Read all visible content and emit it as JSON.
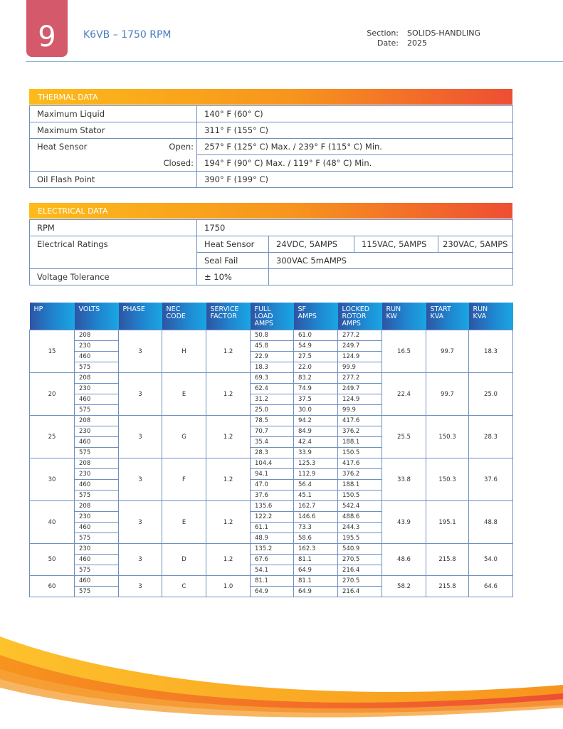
{
  "header": {
    "page_number": "9",
    "title": "K6VB – 1750 RPM",
    "section_label": "Section:",
    "section": "SOLIDS-HANDLING",
    "date_label": "Date:",
    "date": "2025"
  },
  "thermal": {
    "title": "THERMAL DATA",
    "max_liquid_label": "Maximum Liquid",
    "max_liquid": "140° F (60° C)",
    "max_stator_label": "Maximum Stator",
    "max_stator": "311° F (155° C)",
    "heat_sensor_label": "Heat Sensor",
    "open_label": "Open:",
    "open": "257° F (125° C) Max. / 239° F (115° C) Min.",
    "closed_label": "Closed:",
    "closed": "194° F (90° C) Max. / 119° F (48° C) Min.",
    "oil_flash_label": "Oil Flash Point",
    "oil_flash": "390° F (199° C)"
  },
  "electrical": {
    "title": "ELECTRICAL DATA",
    "rpm_label": "RPM",
    "rpm": "1750",
    "ratings_label": "Electrical Ratings",
    "heat_sensor_label": "Heat Sensor",
    "heat_sensor": [
      "24VDC, 5AMPS",
      "115VAC, 5AMPS",
      "230VAC, 5AMPS"
    ],
    "seal_fail_label": "Seal Fail",
    "seal_fail": "300VAC 5mAMPS",
    "voltage_label": "Voltage Tolerance",
    "voltage": "± 10%"
  },
  "motor_table": {
    "headers": [
      "HP",
      "VOLTS",
      "PHASE",
      "NEC CODE",
      "SERVICE FACTOR",
      "FULL LOAD AMPS",
      "SF AMPS",
      "LOCKED ROTOR AMPS",
      "RUN KW",
      "START KVA",
      "RUN KVA"
    ],
    "groups": [
      {
        "hp": "15",
        "phase": "3",
        "nec": "H",
        "service_factor": "1.2",
        "run_kw": "16.5",
        "start_kva": "99.7",
        "run_kva": "18.3",
        "rows": [
          [
            "208",
            "50.8",
            "61.0",
            "277.2"
          ],
          [
            "230",
            "45.8",
            "54.9",
            "249.7"
          ],
          [
            "460",
            "22.9",
            "27.5",
            "124.9"
          ],
          [
            "575",
            "18.3",
            "22.0",
            "99.9"
          ]
        ]
      },
      {
        "hp": "20",
        "phase": "3",
        "nec": "E",
        "service_factor": "1.2",
        "run_kw": "22.4",
        "start_kva": "99.7",
        "run_kva": "25.0",
        "rows": [
          [
            "208",
            "69.3",
            "83.2",
            "277.2"
          ],
          [
            "230",
            "62.4",
            "74.9",
            "249.7"
          ],
          [
            "460",
            "31.2",
            "37.5",
            "124.9"
          ],
          [
            "575",
            "25.0",
            "30.0",
            "99.9"
          ]
        ]
      },
      {
        "hp": "25",
        "phase": "3",
        "nec": "G",
        "service_factor": "1.2",
        "run_kw": "25.5",
        "start_kva": "150.3",
        "run_kva": "28.3",
        "rows": [
          [
            "208",
            "78.5",
            "94.2",
            "417.6"
          ],
          [
            "230",
            "70.7",
            "84.9",
            "376.2"
          ],
          [
            "460",
            "35.4",
            "42.4",
            "188.1"
          ],
          [
            "575",
            "28.3",
            "33.9",
            "150.5"
          ]
        ]
      },
      {
        "hp": "30",
        "phase": "3",
        "nec": "F",
        "service_factor": "1.2",
        "run_kw": "33.8",
        "start_kva": "150.3",
        "run_kva": "37.6",
        "rows": [
          [
            "208",
            "104.4",
            "125.3",
            "417.6"
          ],
          [
            "230",
            "94.1",
            "112.9",
            "376.2"
          ],
          [
            "460",
            "47.0",
            "56.4",
            "188.1"
          ],
          [
            "575",
            "37.6",
            "45.1",
            "150.5"
          ]
        ]
      },
      {
        "hp": "40",
        "phase": "3",
        "nec": "E",
        "service_factor": "1.2",
        "run_kw": "43.9",
        "start_kva": "195.1",
        "run_kva": "48.8",
        "rows": [
          [
            "208",
            "135.6",
            "162.7",
            "542.4"
          ],
          [
            "230",
            "122.2",
            "146.6",
            "488.6"
          ],
          [
            "460",
            "61.1",
            "73.3",
            "244.3"
          ],
          [
            "575",
            "48.9",
            "58.6",
            "195.5"
          ]
        ]
      },
      {
        "hp": "50",
        "phase": "3",
        "nec": "D",
        "service_factor": "1.2",
        "run_kw": "48.6",
        "start_kva": "215.8",
        "run_kva": "54.0",
        "rows": [
          [
            "230",
            "135.2",
            "162.3",
            "540.9"
          ],
          [
            "460",
            "67.6",
            "81.1",
            "270.5"
          ],
          [
            "575",
            "54.1",
            "64.9",
            "216.4"
          ]
        ]
      },
      {
        "hp": "60",
        "phase": "3",
        "nec": "C",
        "service_factor": "1.0",
        "run_kw": "58.2",
        "start_kva": "215.8",
        "run_kva": "64.6",
        "rows": [
          [
            "460",
            "81.1",
            "81.1",
            "270.5"
          ],
          [
            "575",
            "64.9",
            "64.9",
            "216.4"
          ]
        ]
      }
    ]
  }
}
